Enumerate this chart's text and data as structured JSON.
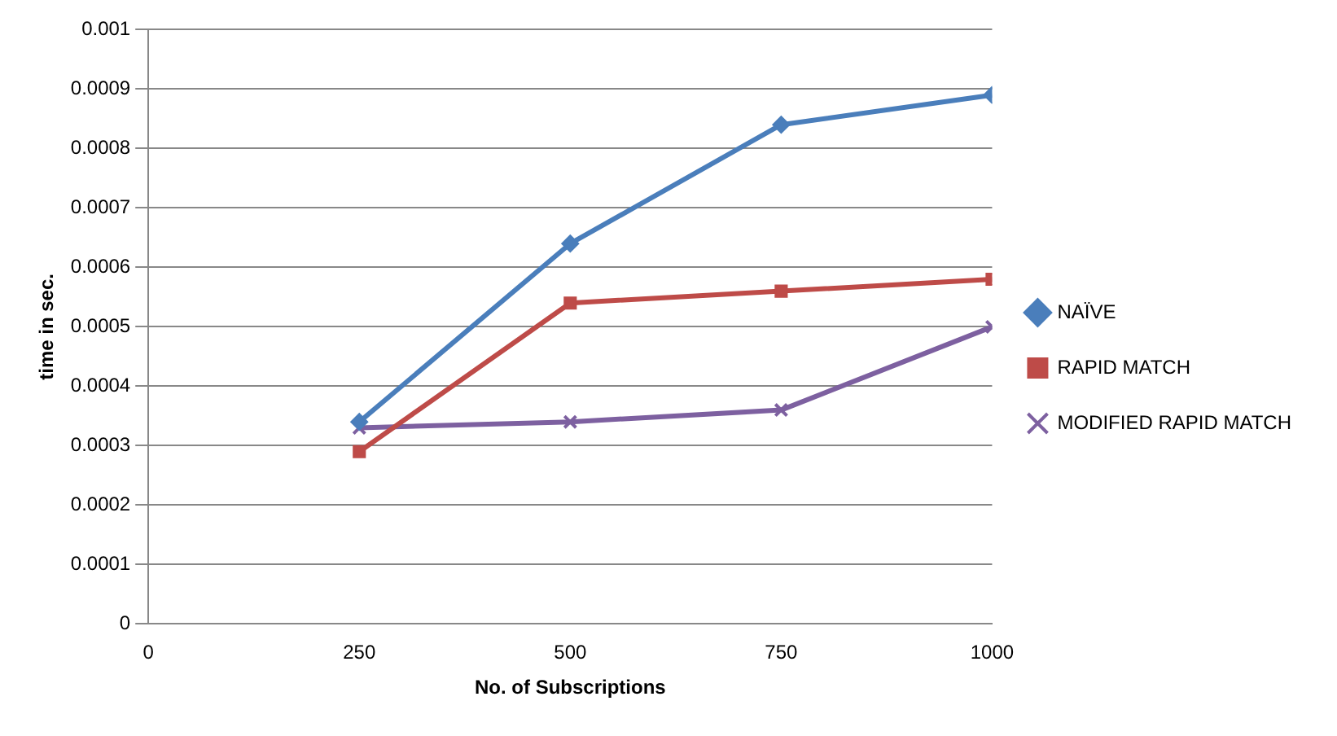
{
  "chart_data": {
    "type": "line",
    "xlabel": "No. of Subscriptions",
    "ylabel": "time in sec.",
    "x": [
      250,
      500,
      750,
      1000
    ],
    "series": [
      {
        "name": "NAÏVE",
        "color": "#4a7ebb",
        "marker": "diamond",
        "values": [
          0.00034,
          0.00064,
          0.00084,
          0.00089
        ]
      },
      {
        "name": "RAPID MATCH",
        "color": "#be4b48",
        "marker": "square",
        "values": [
          0.00029,
          0.00054,
          0.00056,
          0.00058
        ]
      },
      {
        "name": "MODIFIED RAPID MATCH",
        "color": "#7d60a0",
        "marker": "cross",
        "values": [
          0.00033,
          0.00034,
          0.00036,
          0.0005
        ]
      }
    ],
    "xlim": [
      0,
      1000
    ],
    "xticks": [
      0,
      250,
      500,
      750,
      1000
    ],
    "ylim": [
      0,
      0.001
    ],
    "yticks": [
      0,
      0.0001,
      0.0002,
      0.0003,
      0.0004,
      0.0005,
      0.0006,
      0.0007,
      0.0008,
      0.0009,
      0.001
    ],
    "grid": "y",
    "legend": "right",
    "line_style": "solid"
  }
}
